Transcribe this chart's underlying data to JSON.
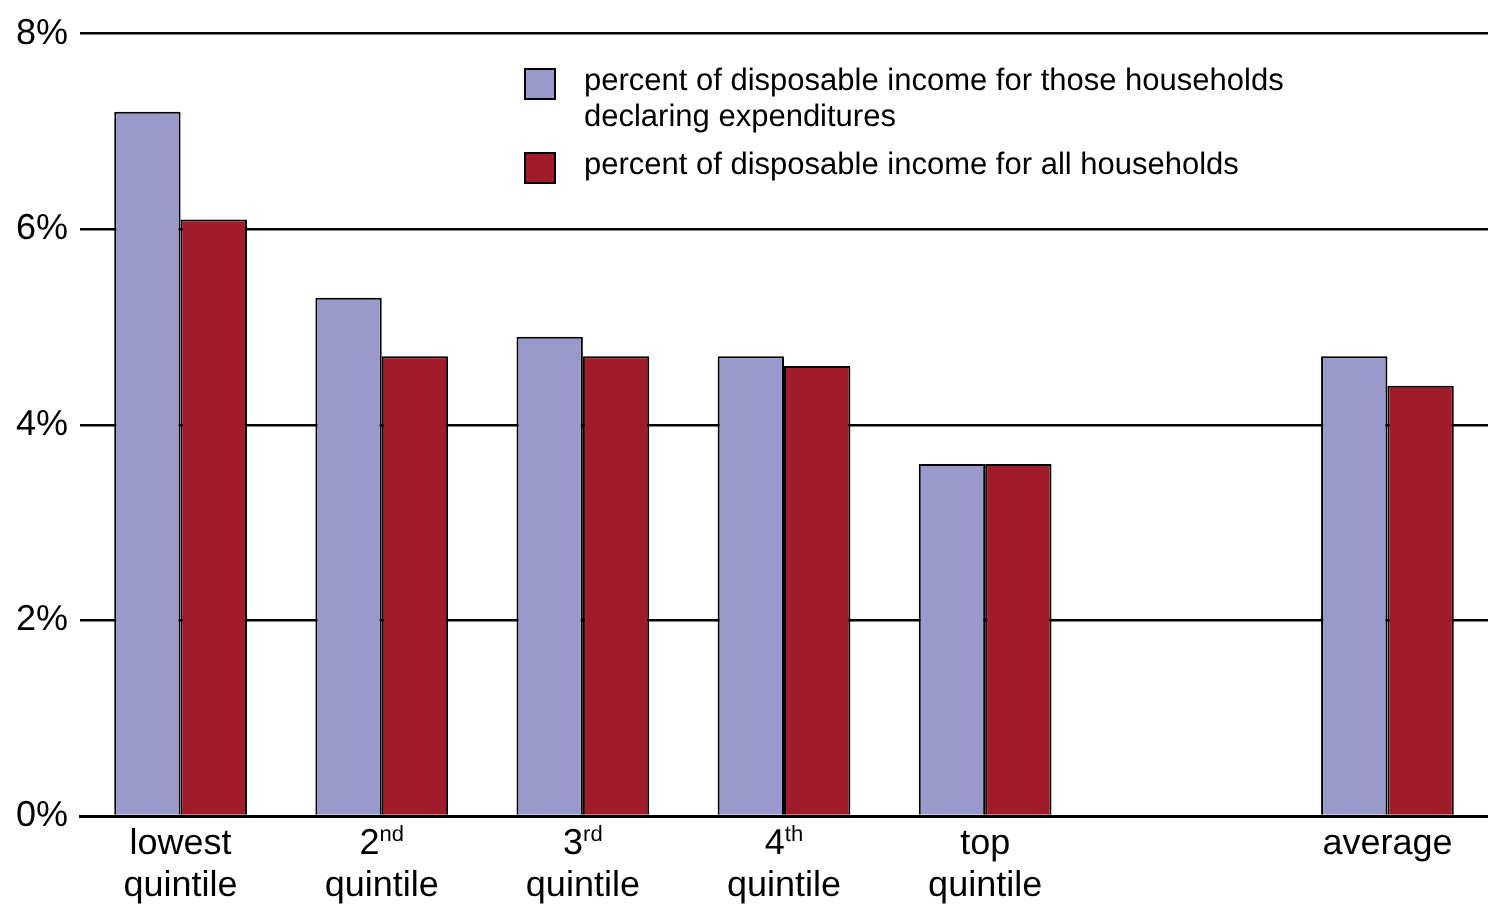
{
  "chart_data": {
    "type": "bar",
    "categories": [
      "lowest quintile",
      "2$^{nd}$ quintile",
      "3$^{rd}$ quintile",
      "4$^{th}$ quintile",
      "top quintile",
      null,
      "average"
    ],
    "series": [
      {
        "name": "percent of disposable income for those households declaring expenditures",
        "color": "#9999cc",
        "values": [
          7.2,
          5.3,
          4.9,
          4.7,
          3.6,
          null,
          4.7
        ]
      },
      {
        "name": "percent of disposable income for all households",
        "color": "#a01c2b",
        "values": [
          6.1,
          4.7,
          4.7,
          4.6,
          3.6,
          null,
          4.4
        ]
      }
    ],
    "ylim": [
      0,
      8
    ],
    "yticks": [
      {
        "value": 0,
        "label": "0%"
      },
      {
        "value": 2,
        "label": "2%"
      },
      {
        "value": 4,
        "label": "4%"
      },
      {
        "value": 6,
        "label": "6%"
      },
      {
        "value": 8,
        "label": "8%"
      }
    ],
    "grid": "y",
    "legend": "top"
  }
}
